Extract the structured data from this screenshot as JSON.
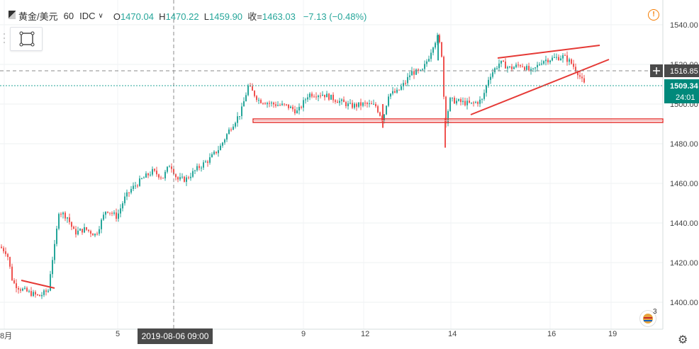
{
  "header": {
    "symbol": "黄金/美元",
    "interval": "60",
    "source": "IDC",
    "open_label": "O",
    "open": "1470.04",
    "high_label": "H",
    "high": "1470.22",
    "low_label": "L",
    "low": "1459.90",
    "close_label": "收=",
    "close": "1463.03",
    "change": "−7.13 (−0.48%)"
  },
  "colors": {
    "up": "#26a69a",
    "down": "#ef5350",
    "drawing": "#e53935",
    "crosshair_price_bg": "#4a4a4a",
    "last_price_bg": "#00897b",
    "alert": "#f57c00"
  },
  "icons": [
    "drawing-tool-icon",
    "alert-icon",
    "settings-gear-icon",
    "events-badge-icon",
    "chevron-down-icon",
    "crosshair-plus-icon"
  ],
  "price_axis": {
    "ticks": [
      "1540.00",
      "1520.00",
      "1500.00",
      "1480.00",
      "1460.00",
      "1440.00",
      "1420.00",
      "1400.00"
    ],
    "crosshair_price": "1516.85",
    "last_price": "1509.34",
    "countdown": "24:01"
  },
  "time_axis": {
    "ticks": [
      "8月",
      "5",
      "9",
      "12",
      "14",
      "16",
      "19"
    ],
    "crosshair_time": "2019-08-06  09:00"
  },
  "events_badge_count": "3",
  "chart_data": {
    "type": "candlestick",
    "title": "黄金/美元 · 60 · IDC",
    "ylim": [
      1392,
      1548
    ],
    "xlabels": [
      "8月",
      "5",
      "9",
      "12",
      "14",
      "16",
      "19"
    ],
    "path_points": [
      [
        0,
        1428
      ],
      [
        10,
        1425
      ],
      [
        18,
        1410
      ],
      [
        28,
        1407
      ],
      [
        40,
        1405
      ],
      [
        55,
        1403
      ],
      [
        68,
        1406
      ],
      [
        72,
        1418
      ],
      [
        78,
        1430
      ],
      [
        83,
        1446
      ],
      [
        95,
        1443
      ],
      [
        105,
        1435
      ],
      [
        120,
        1437
      ],
      [
        135,
        1434
      ],
      [
        150,
        1447
      ],
      [
        165,
        1443
      ],
      [
        175,
        1452
      ],
      [
        185,
        1457
      ],
      [
        200,
        1462
      ],
      [
        215,
        1466
      ],
      [
        230,
        1463
      ],
      [
        240,
        1470
      ],
      [
        250,
        1462
      ],
      [
        262,
        1462
      ],
      [
        280,
        1468
      ],
      [
        295,
        1472
      ],
      [
        310,
        1478
      ],
      [
        325,
        1488
      ],
      [
        340,
        1496
      ],
      [
        350,
        1509
      ],
      [
        365,
        1502
      ],
      [
        385,
        1500
      ],
      [
        405,
        1499
      ],
      [
        420,
        1496
      ],
      [
        435,
        1505
      ],
      [
        455,
        1505
      ],
      [
        475,
        1502
      ],
      [
        495,
        1499
      ],
      [
        515,
        1500
      ],
      [
        530,
        1499
      ],
      [
        540,
        1492
      ],
      [
        548,
        1505
      ],
      [
        560,
        1506
      ],
      [
        572,
        1511
      ],
      [
        580,
        1516
      ],
      [
        595,
        1516
      ],
      [
        605,
        1524
      ],
      [
        612,
        1531
      ],
      [
        618,
        1534
      ],
      [
        623,
        1525
      ],
      [
        628,
        1490
      ],
      [
        635,
        1502
      ],
      [
        650,
        1501
      ],
      [
        665,
        1500
      ],
      [
        680,
        1502
      ],
      [
        690,
        1514
      ],
      [
        705,
        1521
      ],
      [
        720,
        1518
      ],
      [
        735,
        1520
      ],
      [
        750,
        1516
      ],
      [
        765,
        1522
      ],
      [
        780,
        1523
      ],
      [
        795,
        1524
      ],
      [
        805,
        1521
      ],
      [
        815,
        1516
      ],
      [
        822,
        1511
      ],
      [
        826,
        1509
      ]
    ],
    "drawings": [
      {
        "type": "trendline",
        "from": [
          30,
          1410
        ],
        "to": [
          77,
          1406.5
        ]
      },
      {
        "type": "horizontal_zone",
        "from_x": 357,
        "to_x": 935,
        "price_from": 1491,
        "price_to": 1493
      }
    ]
  }
}
